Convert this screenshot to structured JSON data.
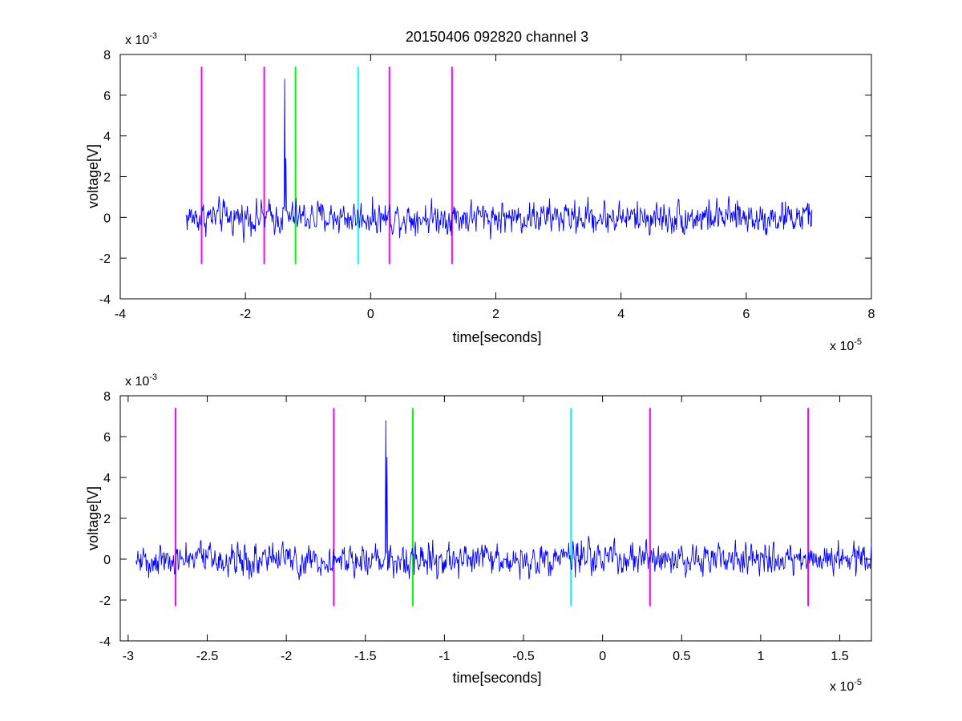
{
  "figure": {
    "title": "20150406 092820 channel 3"
  },
  "colors": {
    "trace": "#0000ff",
    "magenta": "#ff00ff",
    "green": "#00ff00",
    "cyan": "#00ffff",
    "axes": "#000000"
  },
  "chart_data": [
    {
      "type": "line",
      "title": "20150406 092820 channel 3",
      "xlabel": "time[seconds]",
      "ylabel": "voltage[V]",
      "x_exponent_label": "x 10",
      "x_exponent_power": "-5",
      "y_exponent_label": "x 10",
      "y_exponent_power": "-3",
      "xlim": [
        -4,
        8
      ],
      "ylim": [
        -4,
        8
      ],
      "xticks": [
        -4,
        -2,
        0,
        2,
        4,
        6,
        8
      ],
      "xtick_labels": [
        "-4",
        "-2",
        "0",
        "2",
        "4",
        "6",
        "8"
      ],
      "yticks": [
        -4,
        -2,
        0,
        2,
        4,
        6,
        8
      ],
      "ytick_labels": [
        "-4",
        "-2",
        "0",
        "2",
        "4",
        "6",
        "8"
      ],
      "grid": false,
      "trace": {
        "x_start": -2.95,
        "x_end": 7.05,
        "color": "#0000ff"
      },
      "spike": {
        "x": -1.37,
        "values": [
          6.8,
          2.9
        ]
      },
      "markers": [
        {
          "x": -2.7,
          "ymin": -2.3,
          "ymax": 7.4,
          "color": "#ff00ff"
        },
        {
          "x": -1.7,
          "ymin": -2.3,
          "ymax": 7.4,
          "color": "#ff00ff"
        },
        {
          "x": -1.2,
          "ymin": -2.3,
          "ymax": 7.4,
          "color": "#00ff00"
        },
        {
          "x": -0.2,
          "ymin": -2.3,
          "ymax": 7.4,
          "color": "#00ffff"
        },
        {
          "x": 0.3,
          "ymin": -2.3,
          "ymax": 7.4,
          "color": "#ff00ff"
        },
        {
          "x": 1.3,
          "ymin": -2.3,
          "ymax": 7.4,
          "color": "#ff00ff"
        }
      ]
    },
    {
      "type": "line",
      "xlabel": "time[seconds]",
      "ylabel": "voltage[V]",
      "x_exponent_label": "x 10",
      "x_exponent_power": "-5",
      "y_exponent_label": "x 10",
      "y_exponent_power": "-3",
      "xlim": [
        -3.05,
        1.7
      ],
      "ylim": [
        -4,
        8
      ],
      "xticks": [
        -3,
        -2.5,
        -2,
        -1.5,
        -1,
        -0.5,
        0,
        0.5,
        1,
        1.5
      ],
      "xtick_labels": [
        "-3",
        "-2.5",
        "-2",
        "-1.5",
        "-1",
        "-0.5",
        "0",
        "0.5",
        "1",
        "1.5"
      ],
      "yticks": [
        -4,
        -2,
        0,
        2,
        4,
        6,
        8
      ],
      "ytick_labels": [
        "-4",
        "-2",
        "0",
        "2",
        "4",
        "6",
        "8"
      ],
      "grid": false,
      "trace": {
        "x_start": -2.95,
        "x_end": 1.7,
        "color": "#0000ff"
      },
      "spike": {
        "x": -1.37,
        "values": [
          6.8,
          5.0
        ]
      },
      "markers": [
        {
          "x": -2.7,
          "ymin": -2.3,
          "ymax": 7.4,
          "color": "#ff00ff"
        },
        {
          "x": -1.7,
          "ymin": -2.3,
          "ymax": 7.4,
          "color": "#ff00ff"
        },
        {
          "x": -1.2,
          "ymin": -2.3,
          "ymax": 7.4,
          "color": "#00ff00"
        },
        {
          "x": -0.2,
          "ymin": -2.3,
          "ymax": 7.4,
          "color": "#00ffff"
        },
        {
          "x": 0.3,
          "ymin": -2.3,
          "ymax": 7.4,
          "color": "#ff00ff"
        },
        {
          "x": 1.3,
          "ymin": -2.3,
          "ymax": 7.4,
          "color": "#ff00ff"
        }
      ]
    }
  ]
}
